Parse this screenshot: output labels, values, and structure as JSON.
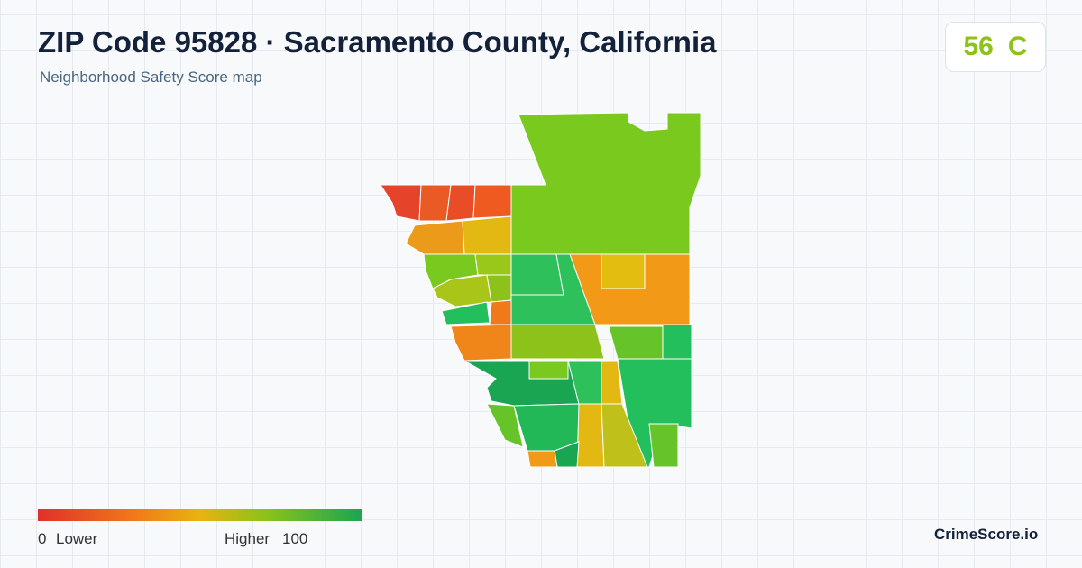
{
  "header": {
    "title": "ZIP Code 95828 · Sacramento County, California",
    "subtitle": "Neighborhood Safety Score map",
    "score": 56,
    "grade": "C"
  },
  "legend": {
    "min": 0,
    "min_label": "Lower",
    "max_label": "Higher",
    "max": 100
  },
  "footer": {
    "brand": "CrimeScore.io"
  }
}
